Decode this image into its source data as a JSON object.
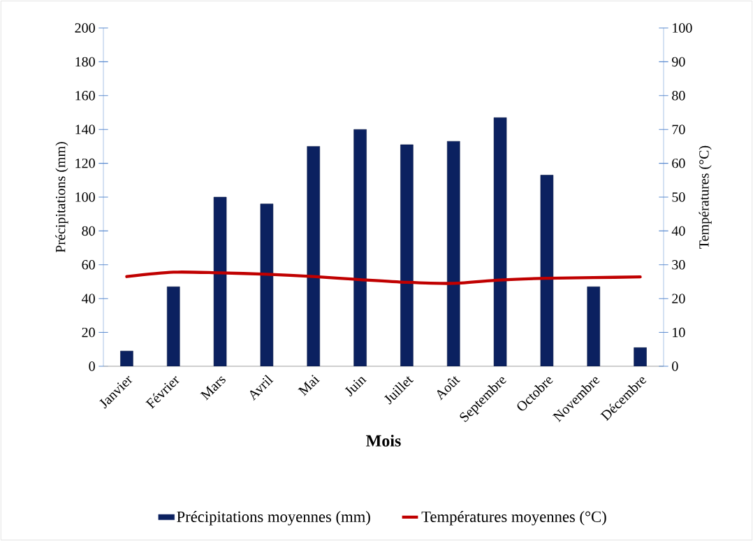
{
  "chart_data": {
    "type": "bar",
    "xlabel": "Mois",
    "ylabel": "Précipitations (mm)",
    "y2label": "Températures (°C)",
    "categories": [
      "Janvier",
      "Février",
      "Mars",
      "Avril",
      "Mai",
      "Juin",
      "Juillet",
      "Août",
      "Septembre",
      "Octobre",
      "Novembre",
      "Décembre"
    ],
    "series": [
      {
        "name": "Précipitations moyennes (mm)",
        "color": "#0b2160",
        "values": [
          9,
          47,
          100,
          96,
          130,
          140,
          131,
          133,
          147,
          113,
          47,
          11
        ]
      },
      {
        "name": "Températures moyennes (°C)",
        "type": "line",
        "axis": "y2",
        "color": "#c00000",
        "values": [
          26.5,
          27.8,
          27.6,
          27.2,
          26.5,
          25.6,
          24.8,
          24.5,
          25.5,
          26.0,
          26.2,
          26.4
        ]
      }
    ],
    "ylim": [
      0,
      200
    ],
    "yticks": [
      0,
      20,
      40,
      60,
      80,
      100,
      120,
      140,
      160,
      180,
      200
    ],
    "y2lim": [
      0,
      100
    ],
    "y2ticks": [
      0,
      10,
      20,
      30,
      40,
      50,
      60,
      70,
      80,
      90,
      100
    ],
    "legend": "bottom",
    "marker": "none"
  }
}
